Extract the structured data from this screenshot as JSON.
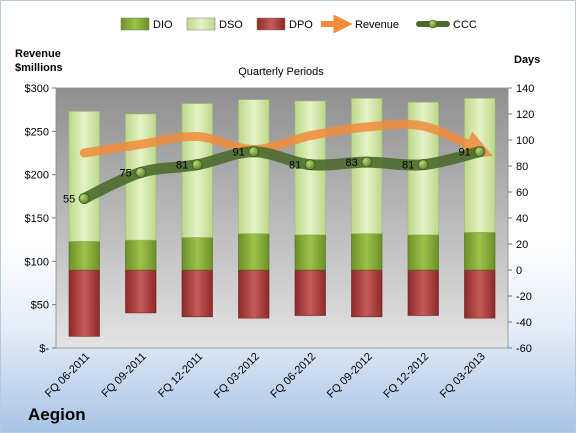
{
  "company": "Aegion",
  "chart_data": {
    "type": "bar",
    "title": "Quarterly Periods",
    "legend_position": "top",
    "grid": false,
    "categories": [
      "FQ 06-2011",
      "FQ 09-2011",
      "FQ 12-2011",
      "FQ 03-2012",
      "FQ 06-2012",
      "FQ 09-2012",
      "FQ 12-2012",
      "FQ 03-2013"
    ],
    "left_axis": {
      "label_line1": "Revenue",
      "label_line2": "$millions",
      "ylim": [
        0,
        300
      ],
      "ticks": [
        0,
        50,
        100,
        150,
        200,
        250,
        300
      ],
      "tick_labels": [
        "$-",
        "$50",
        "$100",
        "$150",
        "$200",
        "$250",
        "$300"
      ]
    },
    "right_axis": {
      "label": "Days",
      "ylim": [
        -60,
        140
      ],
      "ticks": [
        -60,
        -40,
        -20,
        0,
        20,
        40,
        60,
        80,
        100,
        120,
        140
      ],
      "tick_labels": [
        "-60",
        "-40",
        "-20",
        "0",
        "20",
        "40",
        "60",
        "80",
        "100",
        "120",
        "140"
      ]
    },
    "series": [
      {
        "name": "DIO",
        "axis": "right",
        "kind": "stacked-bar",
        "color": "#7fa632",
        "values": [
          22,
          23,
          25,
          28,
          27,
          28,
          27,
          29
        ]
      },
      {
        "name": "DSO",
        "axis": "right",
        "kind": "stacked-bar",
        "color": "#d4e6a8",
        "values": [
          100,
          97,
          103,
          103,
          103,
          104,
          102,
          103
        ]
      },
      {
        "name": "DPO",
        "axis": "right",
        "kind": "negative-bar",
        "color": "#a83c3c",
        "values": [
          -51,
          -33,
          -36,
          -37,
          -35,
          -36,
          -35,
          -37
        ]
      },
      {
        "name": "Revenue",
        "axis": "left",
        "kind": "line",
        "color": "#f28c3c",
        "values": [
          225,
          235,
          244,
          229,
          245,
          255,
          256,
          228
        ]
      },
      {
        "name": "CCC",
        "axis": "right",
        "kind": "line",
        "color": "#4a6b2e",
        "values": [
          55,
          75,
          81,
          91,
          81,
          83,
          81,
          91
        ]
      }
    ],
    "data_labels": [
      "55",
      "75",
      "81",
      "91",
      "81",
      "83",
      "81",
      "91"
    ]
  }
}
